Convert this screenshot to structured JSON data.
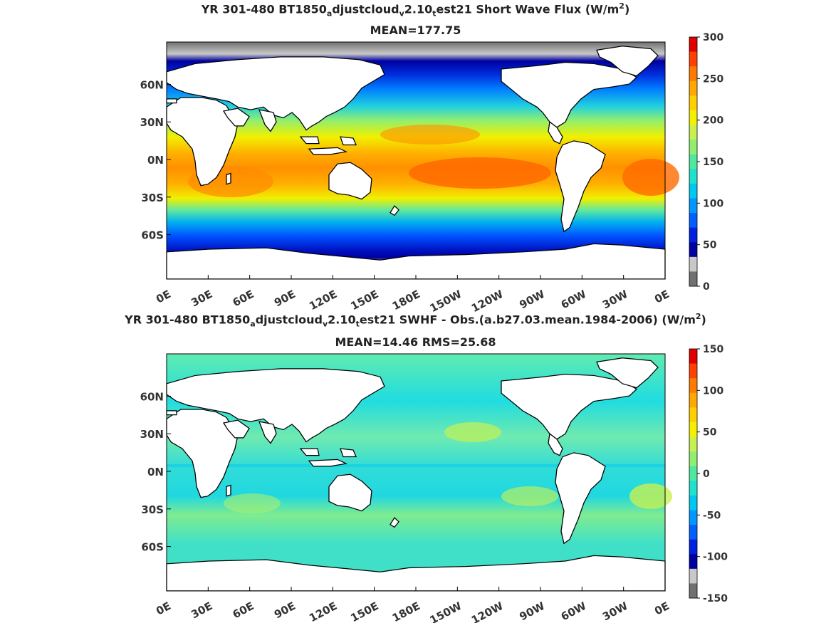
{
  "chart_data": [
    {
      "type": "heatmap",
      "title_parts": [
        "YR 301-480 BT1850",
        "a",
        "djustcloud",
        "v",
        "2.10",
        "t",
        "est21  Short Wave Flux (W/m",
        "2",
        ")"
      ],
      "subtitle": "MEAN=177.75",
      "x_ticks": [
        "0E",
        "30E",
        "60E",
        "90E",
        "120E",
        "150E",
        "180E",
        "150W",
        "120W",
        "90W",
        "60W",
        "30W",
        "0E"
      ],
      "y_ticks": [
        "60N",
        "30N",
        "0N",
        "30S",
        "60S"
      ],
      "colorbar_ticks": [
        "300",
        "250",
        "200",
        "150",
        "100",
        "50",
        "0"
      ],
      "colorbar_colors": [
        "#e00000",
        "#ff4000",
        "#ff7a00",
        "#ffa800",
        "#ffd000",
        "#f5f000",
        "#c8f050",
        "#90ee70",
        "#50e8a0",
        "#20e0d0",
        "#00c8f0",
        "#0098ff",
        "#0060ff",
        "#0020e0",
        "#0000a0",
        "#c8c8c8",
        "#707070"
      ],
      "field": "short-wave heat flux",
      "units": "W/m2"
    },
    {
      "type": "heatmap",
      "title_parts": [
        "YR 301-480 BT1850",
        "a",
        "djustcloud",
        "v",
        "2.10",
        "t",
        "est21 SWHF - Obs.(a.b27.03.mean.1984-2006) (W/m",
        "2",
        ")"
      ],
      "subtitle": "MEAN=14.46 RMS=25.68",
      "x_ticks": [
        "0E",
        "30E",
        "60E",
        "90E",
        "120E",
        "150E",
        "180E",
        "150W",
        "120W",
        "90W",
        "60W",
        "30W",
        "0E"
      ],
      "y_ticks": [
        "60N",
        "30N",
        "0N",
        "30S",
        "60S"
      ],
      "colorbar_ticks": [
        "150",
        "100",
        "50",
        "0",
        "-50",
        "-100",
        "-150"
      ],
      "colorbar_colors": [
        "#e00000",
        "#ff4000",
        "#ff7a00",
        "#ffa800",
        "#ffd000",
        "#f5f000",
        "#c8f050",
        "#90ee70",
        "#50e8a0",
        "#20e0d0",
        "#00c8f0",
        "#0098ff",
        "#0060ff",
        "#0020e0",
        "#0000a0",
        "#c8c8c8",
        "#707070"
      ],
      "field": "short-wave heat flux bias",
      "units": "W/m2"
    }
  ]
}
